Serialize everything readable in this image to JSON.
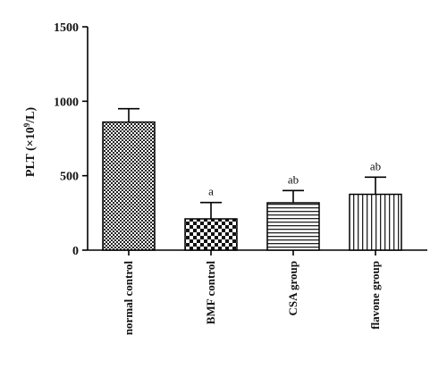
{
  "chart_data": {
    "type": "bar",
    "title": "",
    "xlabel": "",
    "ylabel": {
      "prefix": "PLT (×10",
      "exponent": "9",
      "suffix": "/L)"
    },
    "ylim": [
      0,
      1500
    ],
    "yticks": [
      0,
      500,
      1000,
      1500
    ],
    "categories": [
      "normal control",
      "BMF control",
      "CSA group",
      "flavone group"
    ],
    "values": [
      860,
      210,
      318,
      375
    ],
    "errors": [
      90,
      110,
      82,
      115
    ],
    "annotations": [
      "",
      "a",
      "ab",
      "ab"
    ],
    "patterns": [
      "fine-checker",
      "coarse-checker",
      "horizontal-lines",
      "vertical-lines"
    ],
    "grid": false,
    "legend": "none"
  }
}
